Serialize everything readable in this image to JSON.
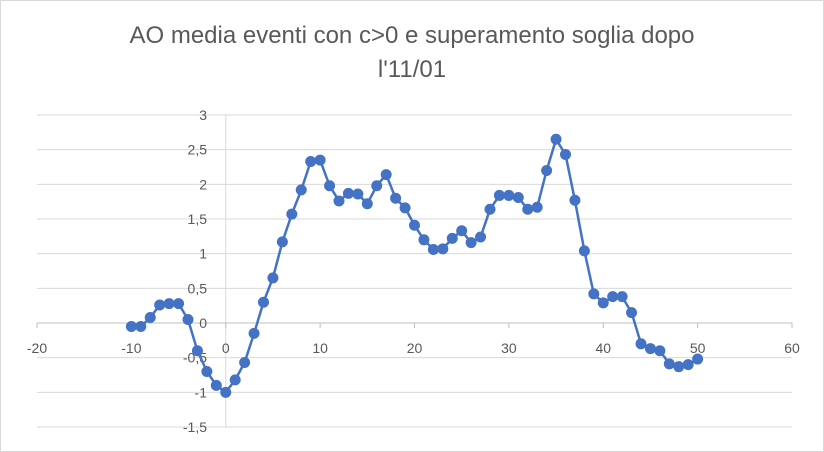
{
  "chart_data": {
    "type": "scatter",
    "title_lines": [
      "AO media eventi con c>0 e superamento soglia dopo",
      "l'11/01"
    ],
    "xlabel": "",
    "ylabel": "",
    "xlim": [
      -20,
      60
    ],
    "ylim": [
      -1.5,
      3
    ],
    "x_ticks": [
      -20,
      -10,
      0,
      10,
      20,
      30,
      40,
      50,
      60
    ],
    "y_ticks": [
      3,
      2.5,
      2,
      1.5,
      1,
      0.5,
      0,
      -0.5,
      -1,
      -1.5
    ],
    "x_tick_labels": [
      "-20",
      "-10",
      "0",
      "10",
      "20",
      "30",
      "40",
      "50",
      "60"
    ],
    "y_tick_labels": [
      "3",
      "2,5",
      "2",
      "1,5",
      "1",
      "0,5",
      "0",
      "-0,5",
      "-1",
      "-1,5"
    ],
    "grid": "horizontal",
    "legend": "none",
    "color": "#4472C4",
    "series": [
      {
        "x": [
          -10,
          -9,
          -8,
          -7,
          -6,
          -5,
          -4,
          -3,
          -2,
          -1,
          0,
          1,
          2,
          3,
          4,
          5,
          6,
          7,
          8,
          9,
          10,
          11,
          12,
          13,
          14,
          15,
          16,
          17,
          18,
          19,
          20,
          21,
          22,
          23,
          24,
          25,
          26,
          27,
          28,
          29,
          30,
          31,
          32,
          33,
          34,
          35,
          36,
          37,
          38,
          39,
          40,
          41,
          42,
          43,
          44,
          45,
          46,
          47,
          48,
          49,
          50
        ],
        "y": [
          -0.05,
          -0.05,
          0.08,
          0.26,
          0.28,
          0.28,
          0.05,
          -0.4,
          -0.7,
          -0.9,
          -1.0,
          -0.82,
          -0.57,
          -0.15,
          0.3,
          0.65,
          1.17,
          1.57,
          1.92,
          2.33,
          2.35,
          1.98,
          1.76,
          1.87,
          1.86,
          1.72,
          1.98,
          2.14,
          1.8,
          1.66,
          1.41,
          1.2,
          1.06,
          1.07,
          1.22,
          1.33,
          1.16,
          1.24,
          1.64,
          1.84,
          1.84,
          1.81,
          1.64,
          1.67,
          2.2,
          2.65,
          2.43,
          1.77,
          1.04,
          0.42,
          0.29,
          0.38,
          0.38,
          0.15,
          -0.3,
          -0.37,
          -0.4,
          -0.59,
          -0.63,
          -0.6,
          -0.52
        ]
      }
    ]
  }
}
